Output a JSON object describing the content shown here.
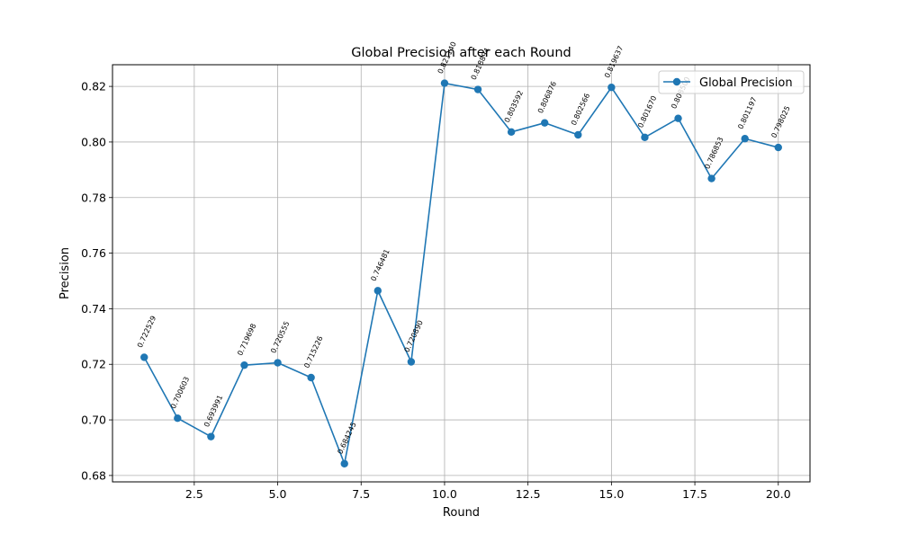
{
  "chart_data": {
    "type": "line",
    "title": "Global Precision after each Round",
    "xlabel": "Round",
    "ylabel": "Precision",
    "xlim": [
      0.05,
      20.95
    ],
    "ylim": [
      0.6777,
      0.8278
    ],
    "x_ticks": [
      2.5,
      5.0,
      7.5,
      10.0,
      12.5,
      15.0,
      17.5,
      20.0
    ],
    "x_tick_labels": [
      "2.5",
      "5.0",
      "7.5",
      "10.0",
      "12.5",
      "15.0",
      "17.5",
      "20.0"
    ],
    "y_ticks": [
      0.68,
      0.7,
      0.72,
      0.74,
      0.76,
      0.78,
      0.8,
      0.82
    ],
    "y_tick_labels": [
      "0.68",
      "0.70",
      "0.72",
      "0.74",
      "0.76",
      "0.78",
      "0.80",
      "0.82"
    ],
    "grid": true,
    "legend_position": "upper right",
    "series": [
      {
        "name": "Global Precision",
        "color": "#1f77b4",
        "marker": "circle",
        "x": [
          1,
          2,
          3,
          4,
          5,
          6,
          7,
          8,
          9,
          10,
          11,
          12,
          13,
          14,
          15,
          16,
          17,
          18,
          19,
          20
        ],
        "values": [
          0.722529,
          0.700603,
          0.693991,
          0.719698,
          0.720555,
          0.715226,
          0.684245,
          0.746481,
          0.72089,
          0.82114,
          0.818894,
          0.803592,
          0.806876,
          0.802566,
          0.819637,
          0.80167,
          0.8085,
          0.786853,
          0.801197,
          0.798025
        ],
        "data_labels": [
          "0.722529",
          "0.700603",
          "0.693991",
          "0.719698",
          "0.720555",
          "0.715226",
          "0.684245",
          "0.746481",
          "0.720890",
          "0.821140",
          "0.818894",
          "0.803592",
          "0.806876",
          "0.802566",
          "0.819637",
          "0.801670",
          "0.808500",
          "0.786853",
          "0.801197",
          "0.798025"
        ]
      }
    ]
  }
}
